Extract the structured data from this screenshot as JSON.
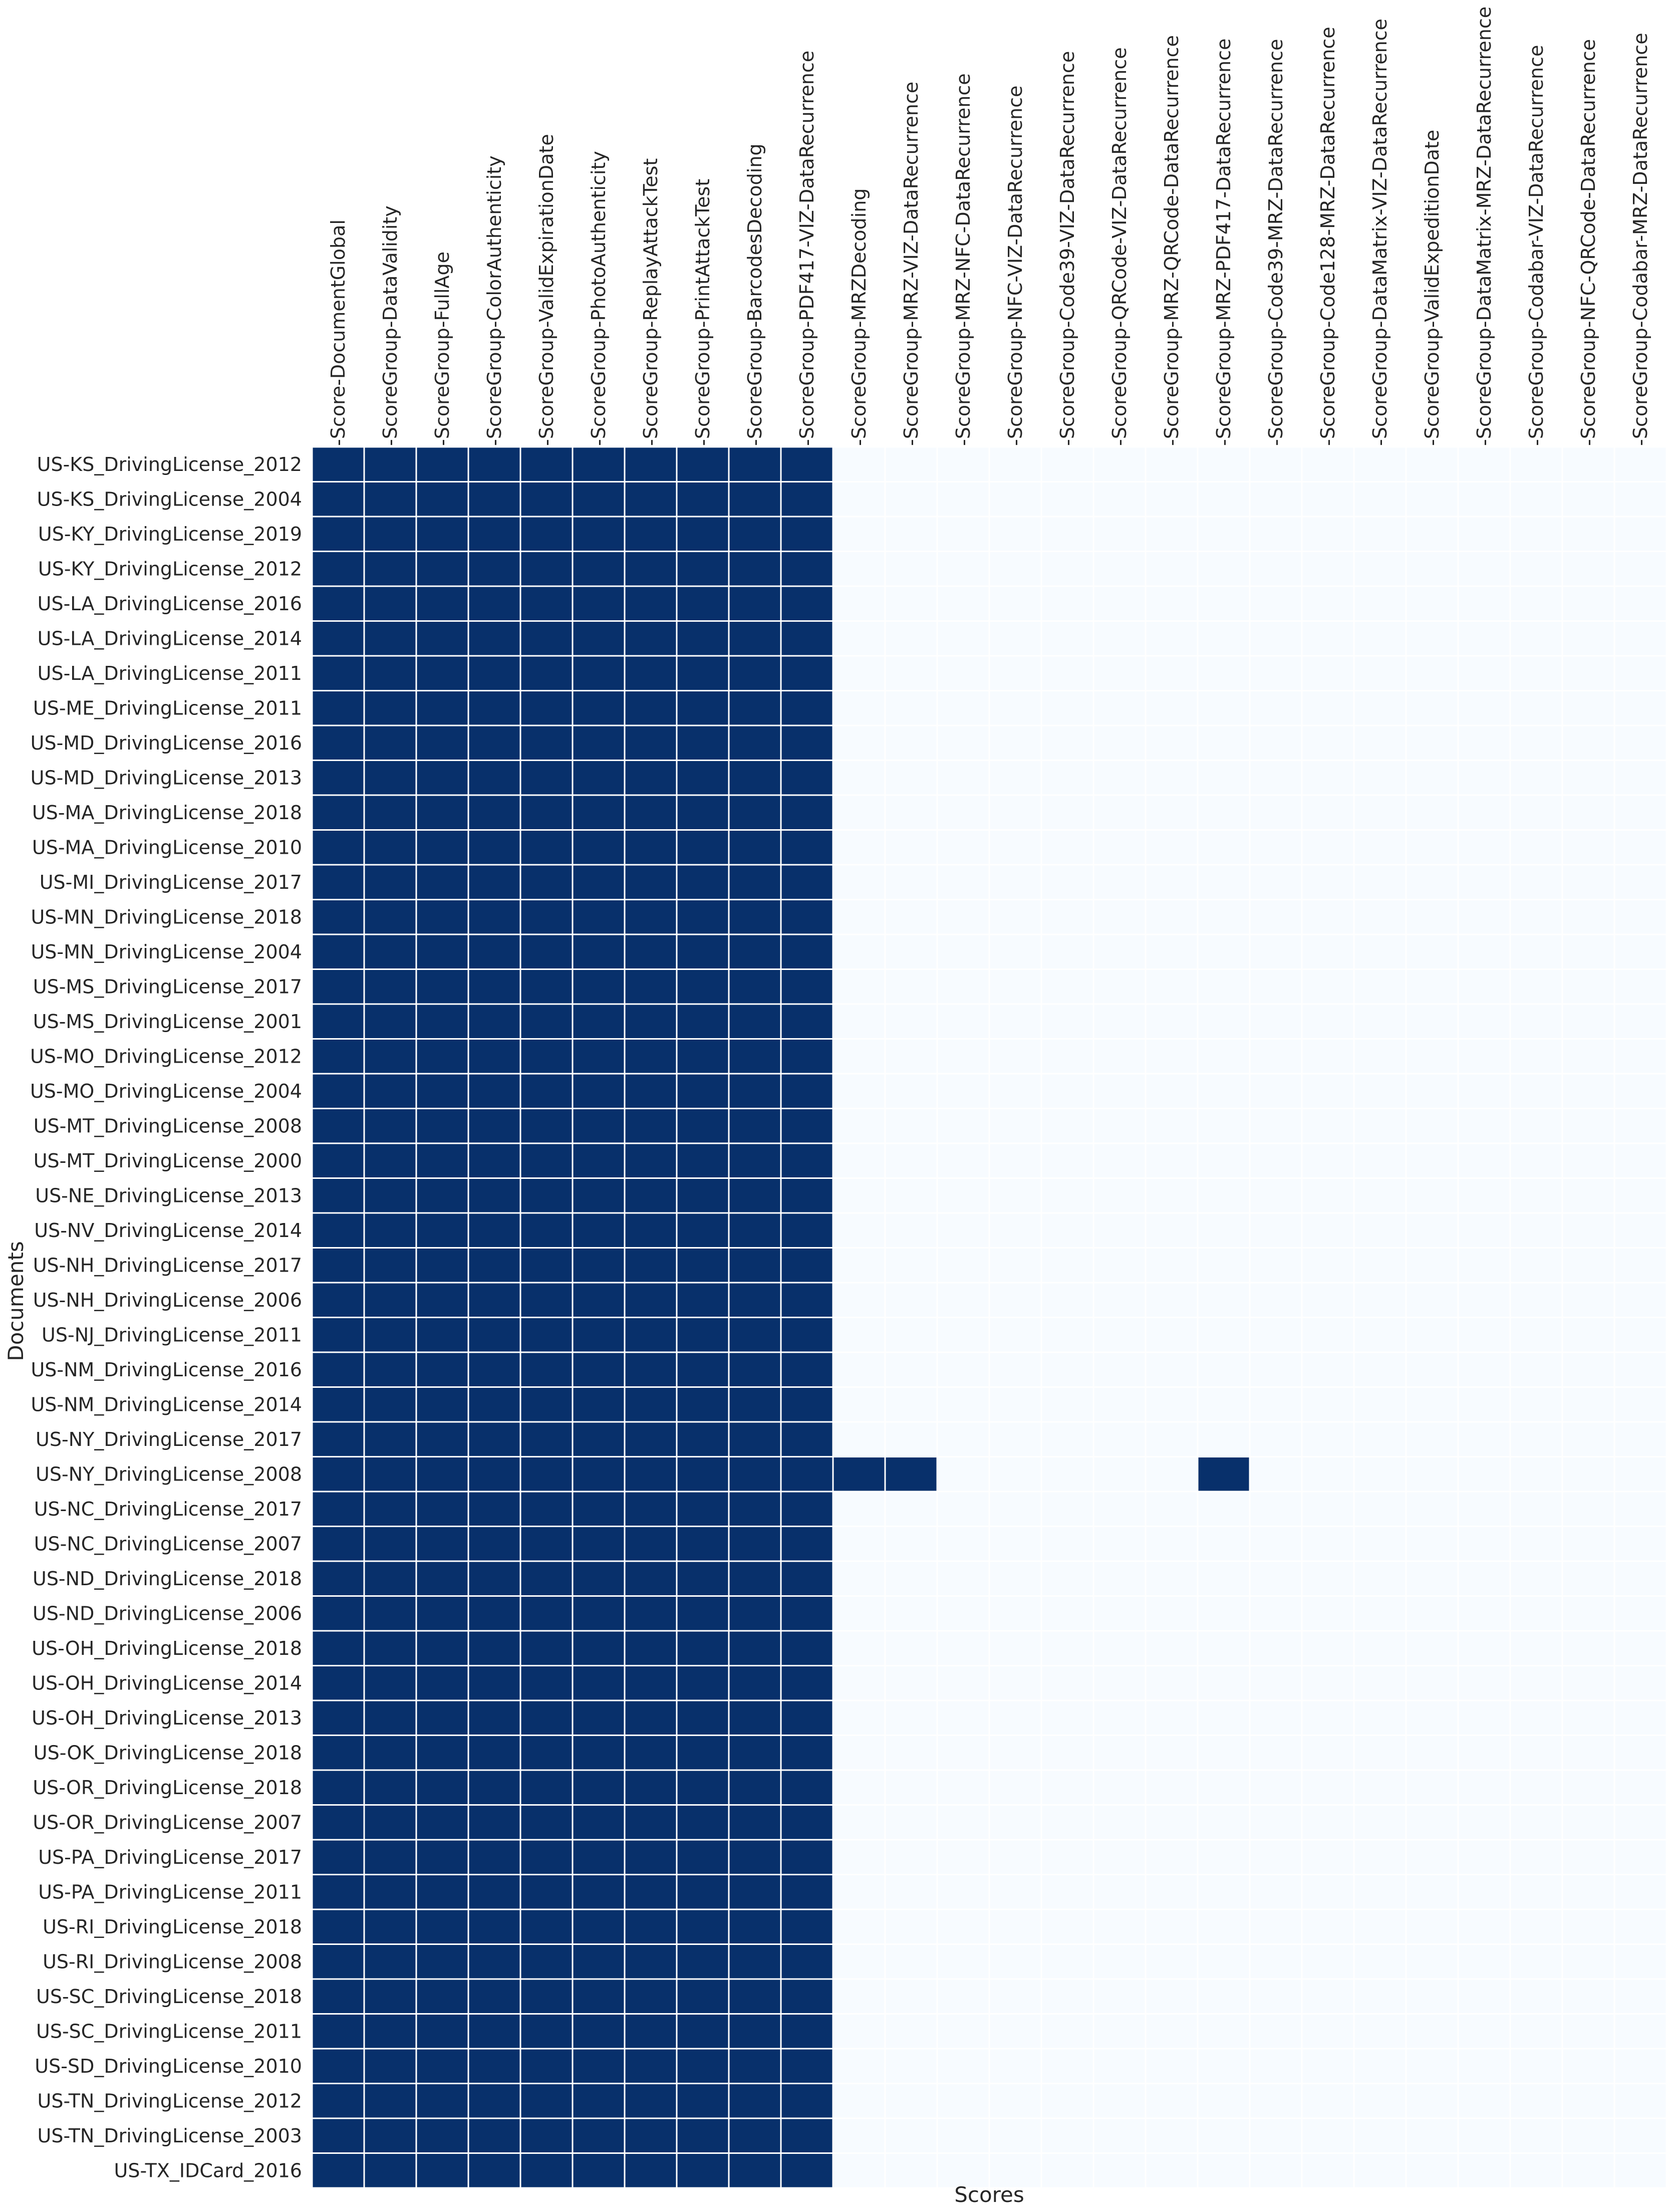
{
  "chart_data": {
    "type": "heatmap",
    "xlabel": "Scores",
    "ylabel": "Documents",
    "colors": {
      "on": "#08306b",
      "off": "#f7fbff",
      "gap": "#ffffff"
    },
    "columns": [
      "Score-DocumentGlobal",
      "ScoreGroup-DataValidity",
      "ScoreGroup-FullAge",
      "ScoreGroup-ColorAuthenticity",
      "ScoreGroup-ValidExpirationDate",
      "ScoreGroup-PhotoAuthenticity",
      "ScoreGroup-ReplayAttackTest",
      "ScoreGroup-PrintAttackTest",
      "ScoreGroup-BarcodesDecoding",
      "ScoreGroup-PDF417-VIZ-DataRecurrence",
      "ScoreGroup-MRZDecoding",
      "ScoreGroup-MRZ-VIZ-DataRecurrence",
      "ScoreGroup-MRZ-NFC-DataRecurrence",
      "ScoreGroup-NFC-VIZ-DataRecurrence",
      "ScoreGroup-Code39-VIZ-DataRecurrence",
      "ScoreGroup-QRCode-VIZ-DataRecurrence",
      "ScoreGroup-MRZ-QRCode-DataRecurrence",
      "ScoreGroup-MRZ-PDF417-DataRecurrence",
      "ScoreGroup-Code39-MRZ-DataRecurrence",
      "ScoreGroup-Code128-MRZ-DataRecurrence",
      "ScoreGroup-DataMatrix-VIZ-DataRecurrence",
      "ScoreGroup-ValidExpeditionDate",
      "ScoreGroup-DataMatrix-MRZ-DataRecurrence",
      "ScoreGroup-Codabar-VIZ-DataRecurrence",
      "ScoreGroup-NFC-QRCode-DataRecurrence",
      "ScoreGroup-Codabar-MRZ-DataRecurrence"
    ],
    "rows": [
      "US-KS_DrivingLicense_2012",
      "US-KS_DrivingLicense_2004",
      "US-KY_DrivingLicense_2019",
      "US-KY_DrivingLicense_2012",
      "US-LA_DrivingLicense_2016",
      "US-LA_DrivingLicense_2014",
      "US-LA_DrivingLicense_2011",
      "US-ME_DrivingLicense_2011",
      "US-MD_DrivingLicense_2016",
      "US-MD_DrivingLicense_2013",
      "US-MA_DrivingLicense_2018",
      "US-MA_DrivingLicense_2010",
      "US-MI_DrivingLicense_2017",
      "US-MN_DrivingLicense_2018",
      "US-MN_DrivingLicense_2004",
      "US-MS_DrivingLicense_2017",
      "US-MS_DrivingLicense_2001",
      "US-MO_DrivingLicense_2012",
      "US-MO_DrivingLicense_2004",
      "US-MT_DrivingLicense_2008",
      "US-MT_DrivingLicense_2000",
      "US-NE_DrivingLicense_2013",
      "US-NV_DrivingLicense_2014",
      "US-NH_DrivingLicense_2017",
      "US-NH_DrivingLicense_2006",
      "US-NJ_DrivingLicense_2011",
      "US-NM_DrivingLicense_2016",
      "US-NM_DrivingLicense_2014",
      "US-NY_DrivingLicense_2017",
      "US-NY_DrivingLicense_2008",
      "US-NC_DrivingLicense_2017",
      "US-NC_DrivingLicense_2007",
      "US-ND_DrivingLicense_2018",
      "US-ND_DrivingLicense_2006",
      "US-OH_DrivingLicense_2018",
      "US-OH_DrivingLicense_2014",
      "US-OH_DrivingLicense_2013",
      "US-OK_DrivingLicense_2018",
      "US-OR_DrivingLicense_2018",
      "US-OR_DrivingLicense_2007",
      "US-PA_DrivingLicense_2017",
      "US-PA_DrivingLicense_2011",
      "US-RI_DrivingLicense_2018",
      "US-RI_DrivingLicense_2008",
      "US-SC_DrivingLicense_2018",
      "US-SC_DrivingLicense_2011",
      "US-SD_DrivingLicense_2010",
      "US-TN_DrivingLicense_2012",
      "US-TN_DrivingLicense_2003",
      "US-TX_IDCard_2016"
    ],
    "default_present_columns": 10,
    "extra_present": [
      {
        "row": "US-NY_DrivingLicense_2008",
        "columns": [
          "ScoreGroup-MRZDecoding",
          "ScoreGroup-MRZ-VIZ-DataRecurrence",
          "ScoreGroup-MRZ-PDF417-DataRecurrence"
        ]
      }
    ]
  }
}
